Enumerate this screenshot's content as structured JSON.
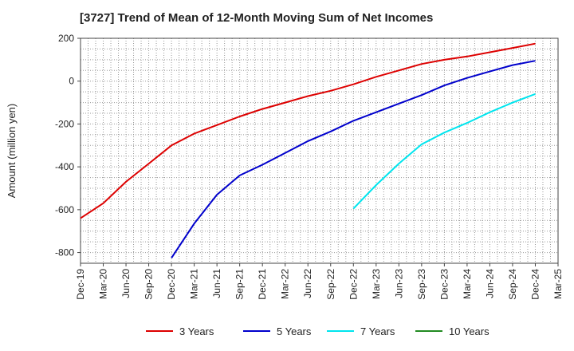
{
  "chart_data": {
    "type": "line",
    "title": "[3727]  Trend of Mean of 12-Month Moving Sum of Net Incomes",
    "xlabel": "",
    "ylabel": "Amount (million yen)",
    "ylim": [
      -850,
      200
    ],
    "yticks": [
      200,
      0,
      -200,
      -400,
      -600,
      -800
    ],
    "grid": true,
    "legend_position": "bottom",
    "x_ticks": [
      "Dec-19",
      "Mar-20",
      "Jun-20",
      "Sep-20",
      "Dec-20",
      "Mar-21",
      "Jun-21",
      "Sep-21",
      "Dec-21",
      "Mar-22",
      "Jun-22",
      "Sep-22",
      "Dec-22",
      "Mar-23",
      "Jun-23",
      "Sep-23",
      "Dec-23",
      "Mar-24",
      "Jun-24",
      "Sep-24",
      "Dec-24",
      "Mar-25"
    ],
    "series": [
      {
        "name": "3 Years",
        "color": "#dd0000",
        "x": [
          "Dec-19",
          "Mar-20",
          "Jun-20",
          "Sep-20",
          "Dec-20",
          "Mar-21",
          "Jun-21",
          "Sep-21",
          "Dec-21",
          "Mar-22",
          "Jun-22",
          "Sep-22",
          "Dec-22",
          "Mar-23",
          "Jun-23",
          "Sep-23",
          "Dec-23",
          "Mar-24",
          "Jun-24",
          "Sep-24",
          "Dec-24"
        ],
        "values": [
          -640,
          -570,
          -470,
          -385,
          -300,
          -245,
          -205,
          -165,
          -130,
          -100,
          -70,
          -45,
          -15,
          20,
          50,
          80,
          100,
          115,
          135,
          155,
          175
        ]
      },
      {
        "name": "5 Years",
        "color": "#0000cc",
        "x": [
          "Dec-20",
          "Mar-21",
          "Jun-21",
          "Sep-21",
          "Dec-21",
          "Mar-22",
          "Jun-22",
          "Sep-22",
          "Dec-22",
          "Mar-23",
          "Jun-23",
          "Sep-23",
          "Dec-23",
          "Mar-24",
          "Jun-24",
          "Sep-24",
          "Dec-24"
        ],
        "values": [
          -825,
          -665,
          -530,
          -440,
          -390,
          -335,
          -280,
          -235,
          -185,
          -145,
          -105,
          -65,
          -20,
          15,
          45,
          75,
          95
        ]
      },
      {
        "name": "7 Years",
        "color": "#00e5ee",
        "x": [
          "Dec-22",
          "Mar-23",
          "Jun-23",
          "Sep-23",
          "Dec-23",
          "Mar-24",
          "Jun-24",
          "Sep-24",
          "Dec-24"
        ],
        "values": [
          -595,
          -485,
          -385,
          -295,
          -240,
          -195,
          -145,
          -100,
          -60
        ]
      },
      {
        "name": "10 Years",
        "color": "#228b22",
        "x": [],
        "values": []
      }
    ]
  }
}
